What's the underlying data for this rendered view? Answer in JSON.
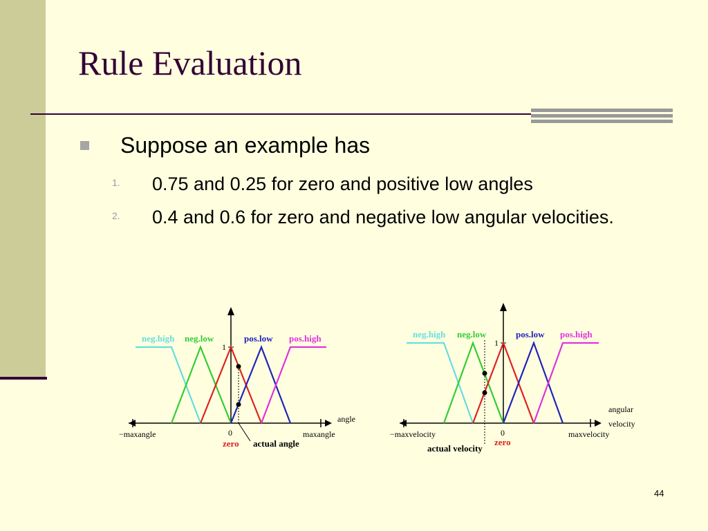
{
  "slide": {
    "title": "Rule Evaluation",
    "bullet": "Suppose an example has",
    "items": [
      {
        "number": "1.",
        "text": "0.75 and 0.25 for zero and positive low angles"
      },
      {
        "number": "2.",
        "text": "0.4 and 0.6 for zero and negative low angular velocities."
      }
    ],
    "page_number": "44"
  },
  "diagram_angle": {
    "labels": {
      "neg_high": "neg.high",
      "neg_low": "neg.low",
      "pos_low": "pos.low",
      "pos_high": "pos.high",
      "one": "1",
      "zero_tick": "0",
      "min": "−maxangle",
      "max": "maxangle",
      "axis": "angle",
      "zero_set": "zero",
      "actual": "actual angle"
    }
  },
  "diagram_velocity": {
    "labels": {
      "neg_high": "neg.high",
      "neg_low": "neg.low",
      "pos_low": "pos.low",
      "pos_high": "pos.high",
      "one": "1",
      "zero_tick": "0",
      "min": "−maxvelocity",
      "max": "maxvelocity",
      "axis_line1": "angular",
      "axis_line2": "velocity",
      "zero_set": "zero",
      "actual": "actual velocity"
    }
  },
  "colors": {
    "neg_high": "#66dddd",
    "neg_low": "#33cc33",
    "zero": "#dd2222",
    "pos_low": "#2222bb",
    "pos_high": "#dd33dd"
  }
}
